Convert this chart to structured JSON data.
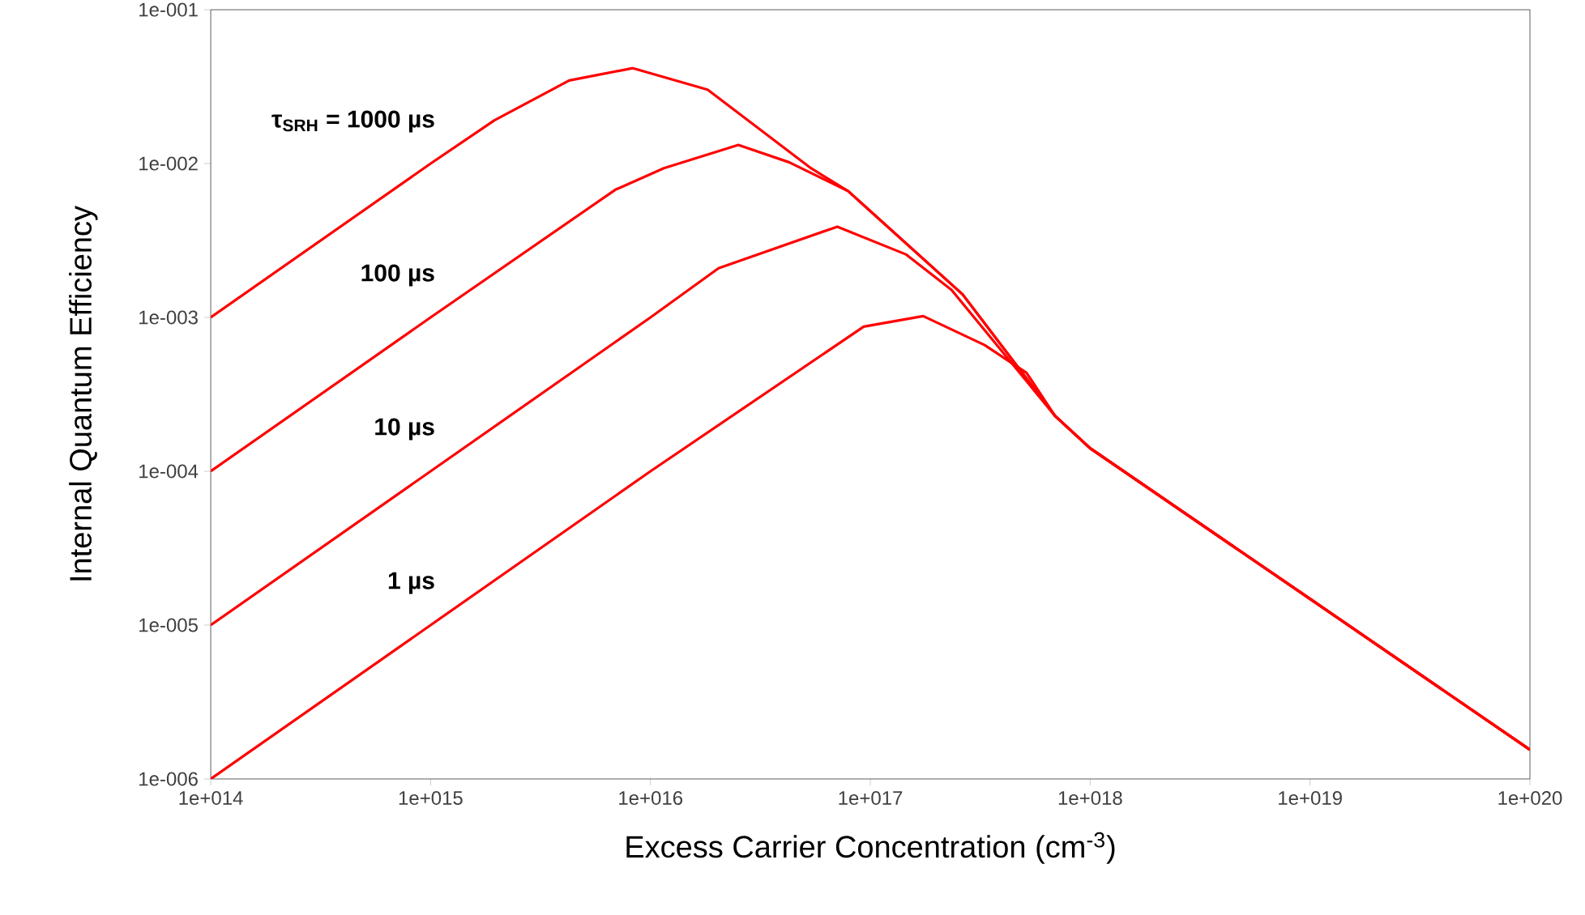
{
  "chart_data": {
    "type": "line",
    "xlabel": "Excess Carrier Concentration (cm$^{-3}$)",
    "ylabel": "Internal Quantum Efficiency",
    "log": "xy",
    "grid": false,
    "marker": "none",
    "line_style": "solid",
    "xlim": [
      100000000000000.0,
      1e+20
    ],
    "ylim": [
      1e-06,
      0.1
    ],
    "xticks": [
      {
        "value": 100000000000000.0,
        "label": "1e+014"
      },
      {
        "value": 1000000000000000.0,
        "label": "1e+015"
      },
      {
        "value": 1e+16,
        "label": "1e+016"
      },
      {
        "value": 1e+17,
        "label": "1e+017"
      },
      {
        "value": 1e+18,
        "label": "1e+018"
      },
      {
        "value": 1e+19,
        "label": "1e+019"
      },
      {
        "value": 1e+20,
        "label": "1e+020"
      }
    ],
    "yticks": [
      {
        "value": 1e-06,
        "label": "1e-006"
      },
      {
        "value": 1e-05,
        "label": "1e-005"
      },
      {
        "value": 0.0001,
        "label": "1e-004"
      },
      {
        "value": 0.001,
        "label": "1e-003"
      },
      {
        "value": 0.01,
        "label": "1e-002"
      },
      {
        "value": 0.1,
        "label": "1e-001"
      }
    ],
    "series": [
      {
        "color": "#ff0000",
        "x": [
          100000000000000.0,
          1000000000000000.0,
          1950000000000000.0,
          4270000000000000.0,
          8320000000000000.0,
          1.82e+16,
          5.37e+16,
          7.94e+16,
          2.63e+17,
          6.92e+17,
          1e+18,
          1e+19,
          1e+20
        ],
        "values": [
          0.001,
          0.01,
          0.0191,
          0.0347,
          0.0417,
          0.0302,
          0.00933,
          0.00661,
          0.00141,
          0.000229,
          0.000141,
          1.48e-05,
          1.55e-06
        ]
      },
      {
        "color": "#ff0000",
        "x": [
          100000000000000.0,
          1000000000000000.0,
          6920000000000000.0,
          1.15e+16,
          2.51e+16,
          4.27e+16,
          7.94e+16,
          2.63e+17,
          6.92e+17,
          1e+18,
          1e+19,
          1e+20
        ],
        "values": [
          0.0001,
          0.001,
          0.00676,
          0.00933,
          0.0132,
          0.0102,
          0.00661,
          0.00141,
          0.000229,
          0.000141,
          1.48e-05,
          1.55e-06
        ]
      },
      {
        "color": "#ff0000",
        "x": [
          100000000000000.0,
          1000000000000000.0,
          1e+16,
          2.04e+16,
          7.08e+16,
          1.45e+17,
          2.34e+17,
          6.92e+17,
          1e+18,
          1e+19,
          1e+20
        ],
        "values": [
          1e-05,
          0.0001,
          0.001,
          0.00209,
          0.00389,
          0.00257,
          0.00151,
          0.000229,
          0.000141,
          1.48e-05,
          1.55e-06
        ]
      },
      {
        "color": "#ff0000",
        "x": [
          100000000000000.0,
          1000000000000000.0,
          1e+16,
          9.33e+16,
          1.74e+17,
          3.31e+17,
          5.13e+17,
          6.92e+17,
          1e+18,
          1e+19,
          1e+20
        ],
        "values": [
          1e-06,
          1e-05,
          0.0001,
          0.000871,
          0.00102,
          0.000661,
          0.000437,
          0.000229,
          0.000141,
          1.48e-05,
          1.55e-06
        ]
      }
    ],
    "annotations": [
      "τ$_{SRH}$ = 1000 µs",
      "100 µs",
      "10 µs",
      "1 µs"
    ]
  }
}
